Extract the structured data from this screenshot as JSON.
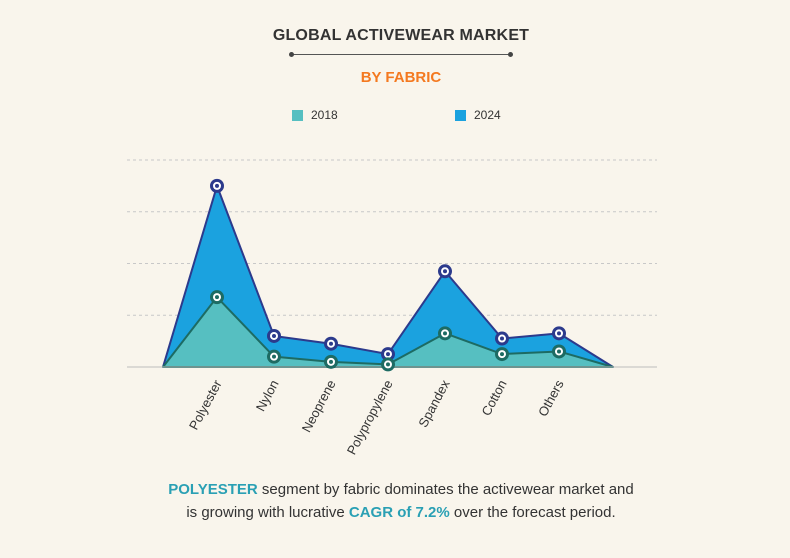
{
  "header": {
    "title": "GLOBAL ACTIVEWEAR MARKET",
    "subtitle": "BY FABRIC"
  },
  "caption": {
    "part1_highlight": "POLYESTER",
    "part1_text": " segment by fabric dominates the activewear market and",
    "part2_text": "is growing with lucrative ",
    "part2_highlight": "CAGR of 7.2%",
    "part2_end": " over the forecast period."
  },
  "colors": {
    "background": "#f9f5ec",
    "series_2018": "#56bfc1",
    "series_2024": "#1ba2df",
    "outline_2018": "#1d6b63",
    "outline_2024": "#2c3a8c",
    "subtitle": "#f47920",
    "highlight": "#2aa0b4",
    "grid": "#c8c8c8"
  },
  "chart_data": {
    "type": "area",
    "title": "GLOBAL ACTIVEWEAR MARKET",
    "subtitle": "BY FABRIC",
    "categories": [
      "Polyester",
      "Nylon",
      "Neoprene",
      "Polypropylene",
      "Spandex",
      "Cotton",
      "Others"
    ],
    "series": [
      {
        "name": "2018",
        "values": [
          27,
          4,
          2,
          1,
          13,
          5,
          6
        ]
      },
      {
        "name": "2024",
        "values": [
          70,
          12,
          9,
          5,
          37,
          11,
          13
        ]
      }
    ],
    "ylim": [
      0,
      80
    ],
    "yaxis_labels_shown": false,
    "grid": true,
    "legend_position": "top"
  }
}
